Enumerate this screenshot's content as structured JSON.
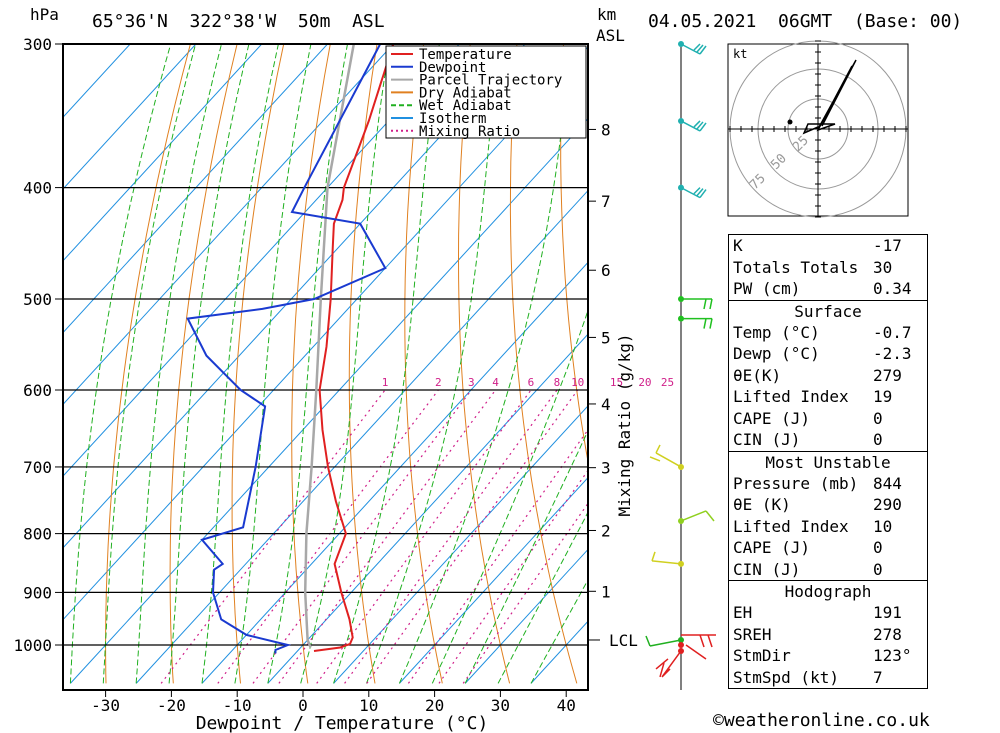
{
  "header": {
    "hpa_unit": "hPa",
    "location": "65°36'N  322°38'W  50m  ASL",
    "km_unit": "km",
    "asl": "ASL",
    "datetime": "04.05.2021  06GMT  (Base: 00)"
  },
  "chart_data": {
    "type": "skew-t",
    "xlabel": "Dewpoint / Temperature (°C)",
    "ylabel_pressure": "hPa",
    "mixing_ratio_label": "Mixing Ratio (g/kg)",
    "x_ticks": [
      -30,
      -20,
      -10,
      0,
      10,
      20,
      30,
      40
    ],
    "pressure_ticks": [
      300,
      400,
      500,
      600,
      700,
      800,
      900,
      1000
    ],
    "km_ticks": [
      {
        "km": "8",
        "p": 356
      },
      {
        "km": "7",
        "p": 411
      },
      {
        "km": "6",
        "p": 472
      },
      {
        "km": "5",
        "p": 540
      },
      {
        "km": "4",
        "p": 617
      },
      {
        "km": "3",
        "p": 701
      },
      {
        "km": "2",
        "p": 795
      },
      {
        "km": "1",
        "p": 898
      }
    ],
    "lcl": {
      "label": "LCL",
      "p": 990
    },
    "mixing_ratio_values": [
      1,
      2,
      3,
      4,
      6,
      8,
      10,
      15,
      20,
      25
    ],
    "legend": [
      {
        "name": "Temperature",
        "color": "#e02020",
        "style": "solid"
      },
      {
        "name": "Dewpoint",
        "color": "#1a3ad0",
        "style": "solid"
      },
      {
        "name": "Parcel Trajectory",
        "color": "#a8a8a8",
        "style": "solid"
      },
      {
        "name": "Dry Adiabat",
        "color": "#e08020",
        "style": "solid"
      },
      {
        "name": "Wet Adiabat",
        "color": "#20b020",
        "style": "dashed"
      },
      {
        "name": "Isotherm",
        "color": "#2090e0",
        "style": "solid"
      },
      {
        "name": "Mixing Ratio",
        "color": "#d0208a",
        "style": "dotted"
      }
    ],
    "temperature": [
      {
        "p": 1012,
        "t": 2.5
      },
      {
        "p": 1005,
        "t": 6
      },
      {
        "p": 998,
        "t": 7
      },
      {
        "p": 985,
        "t": 6.5
      },
      {
        "p": 950,
        "t": 3.5
      },
      {
        "p": 900,
        "t": -1.5
      },
      {
        "p": 850,
        "t": -6.5
      },
      {
        "p": 800,
        "t": -9
      },
      {
        "p": 750,
        "t": -15
      },
      {
        "p": 700,
        "t": -21
      },
      {
        "p": 650,
        "t": -27
      },
      {
        "p": 600,
        "t": -33
      },
      {
        "p": 550,
        "t": -38
      },
      {
        "p": 500,
        "t": -44
      },
      {
        "p": 450,
        "t": -51
      },
      {
        "p": 430,
        "t": -54
      },
      {
        "p": 410,
        "t": -56
      },
      {
        "p": 400,
        "t": -57.5
      },
      {
        "p": 350,
        "t": -63
      },
      {
        "p": 300,
        "t": -70
      }
    ],
    "dewpoint": [
      {
        "p": 1017,
        "t": -3
      },
      {
        "p": 1010,
        "t": -3.5
      },
      {
        "p": 1000,
        "t": -2.3
      },
      {
        "p": 980,
        "t": -10
      },
      {
        "p": 950,
        "t": -16
      },
      {
        "p": 900,
        "t": -21
      },
      {
        "p": 860,
        "t": -24
      },
      {
        "p": 850,
        "t": -23.5
      },
      {
        "p": 810,
        "t": -30
      },
      {
        "p": 790,
        "t": -25.5
      },
      {
        "p": 700,
        "t": -32
      },
      {
        "p": 620,
        "t": -39
      },
      {
        "p": 600,
        "t": -45
      },
      {
        "p": 560,
        "t": -55
      },
      {
        "p": 520,
        "t": -63
      },
      {
        "p": 510,
        "t": -53
      },
      {
        "p": 500,
        "t": -46.5
      },
      {
        "p": 470,
        "t": -40
      },
      {
        "p": 430,
        "t": -50
      },
      {
        "p": 420,
        "t": -62
      },
      {
        "p": 400,
        "t": -63.5
      },
      {
        "p": 300,
        "t": -72
      }
    ],
    "parcel": [
      {
        "p": 1005,
        "t": 1.5
      },
      {
        "p": 990,
        "t": 0
      },
      {
        "p": 900,
        "t": -7
      },
      {
        "p": 800,
        "t": -15
      },
      {
        "p": 700,
        "t": -23.5
      },
      {
        "p": 600,
        "t": -33.5
      },
      {
        "p": 500,
        "t": -45.5
      },
      {
        "p": 400,
        "t": -60
      },
      {
        "p": 300,
        "t": -76
      }
    ],
    "wind_barbs": [
      {
        "p": 300,
        "color": "#20b0b0"
      },
      {
        "p": 350,
        "color": "#20b0b0"
      },
      {
        "p": 400,
        "color": "#20b0b0"
      },
      {
        "p": 500,
        "color": "#20c020"
      },
      {
        "p": 520,
        "color": "#20c020"
      },
      {
        "p": 700,
        "color": "#d0d020"
      },
      {
        "p": 780,
        "color": "#90d020"
      },
      {
        "p": 850,
        "color": "#d0d020"
      },
      {
        "p": 990,
        "color": "#20b020"
      },
      {
        "p": 1000,
        "color": "#e02020"
      },
      {
        "p": 1012,
        "color": "#e02020"
      }
    ],
    "hodograph": {
      "unit": "kt",
      "ring_labels": [
        "25",
        "50",
        "75"
      ]
    }
  },
  "indices": {
    "rows": [
      {
        "label": "K",
        "value": "-17"
      },
      {
        "label": "Totals Totals",
        "value": "30"
      },
      {
        "label": "PW (cm)",
        "value": "0.34"
      }
    ]
  },
  "surface": {
    "title": "Surface",
    "rows": [
      {
        "label": "Temp (°C)",
        "value": "-0.7"
      },
      {
        "label": "Dewp (°C)",
        "value": "-2.3"
      },
      {
        "label": "θE(K)",
        "value": "279"
      },
      {
        "label": "Lifted Index",
        "value": "19"
      },
      {
        "label": "CAPE (J)",
        "value": "0"
      },
      {
        "label": "CIN (J)",
        "value": "0"
      }
    ]
  },
  "most_unstable": {
    "title": "Most Unstable",
    "rows": [
      {
        "label": "Pressure (mb)",
        "value": "844"
      },
      {
        "label": "θE (K)",
        "value": "290"
      },
      {
        "label": "Lifted Index",
        "value": "10"
      },
      {
        "label": "CAPE (J)",
        "value": "0"
      },
      {
        "label": "CIN (J)",
        "value": "0"
      }
    ]
  },
  "hodograph_stats": {
    "title": "Hodograph",
    "rows": [
      {
        "label": "EH",
        "value": "191"
      },
      {
        "label": "SREH",
        "value": "278"
      },
      {
        "label": "StmDir",
        "value": "123°"
      },
      {
        "label": "StmSpd (kt)",
        "value": "7"
      }
    ]
  },
  "footer": {
    "copyright": "©weatheronline.co.uk"
  }
}
